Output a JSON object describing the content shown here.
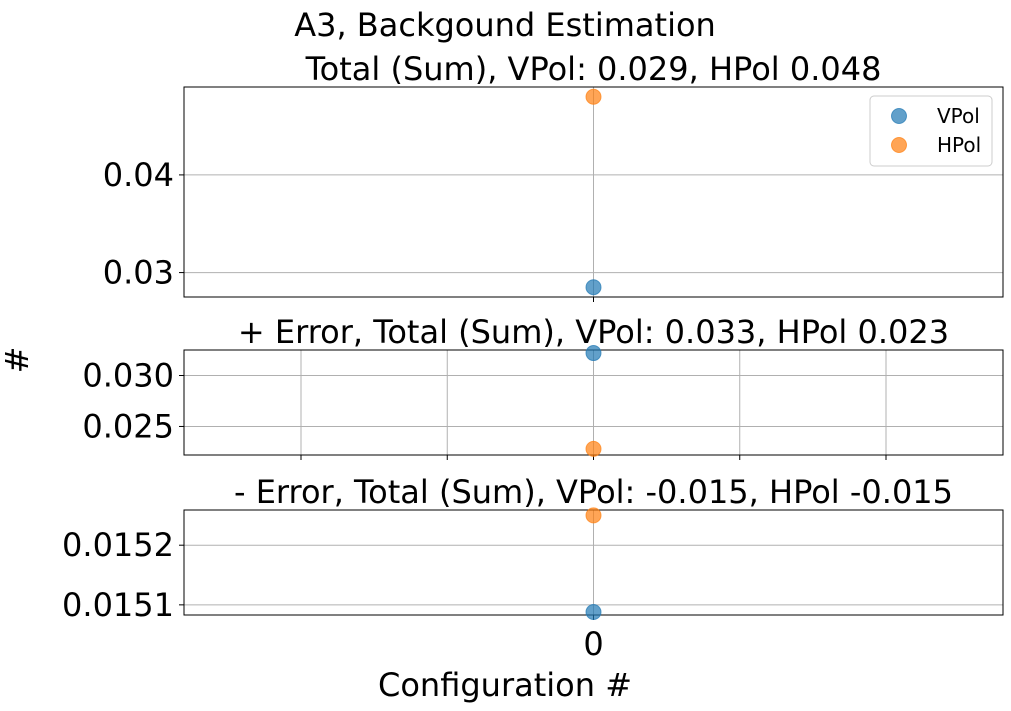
{
  "figure": {
    "suptitle": "A3, Backgound Estimation",
    "ylabel": "#",
    "xlabel": "Configuration #"
  },
  "colors": {
    "VPol": "#1f77b4",
    "HPol": "#ff7f0e",
    "grid": "#b0b0b0"
  },
  "legend": {
    "placement": "top-right",
    "entries": [
      "VPol",
      "HPol"
    ]
  },
  "chart_data": [
    {
      "type": "scatter",
      "title": "Total (Sum), VPol: 0.029, HPol 0.048",
      "xlim": [
        -1.4,
        1.4
      ],
      "ylim": [
        0.0275,
        0.049
      ],
      "yticks": [
        0.03,
        0.04
      ],
      "ytick_labels": [
        "0.03",
        "0.04"
      ],
      "xticks": [
        0
      ],
      "xtick_labels": [],
      "grid": true,
      "series": [
        {
          "name": "VPol",
          "x": [
            0
          ],
          "y": [
            0.0285
          ]
        },
        {
          "name": "HPol",
          "x": [
            0
          ],
          "y": [
            0.048
          ]
        }
      ]
    },
    {
      "type": "scatter",
      "title": "+ Error, Total (Sum), VPol: 0.033, HPol 0.023",
      "xlim": [
        -1.4,
        1.4
      ],
      "ylim": [
        0.0222,
        0.0325
      ],
      "yticks": [
        0.025,
        0.03
      ],
      "ytick_labels": [
        "0.025",
        "0.030"
      ],
      "xticks": [
        -1.0,
        -0.5,
        0,
        0.5,
        1.0
      ],
      "xtick_labels": [],
      "grid": true,
      "series": [
        {
          "name": "VPol",
          "x": [
            0
          ],
          "y": [
            0.0322
          ]
        },
        {
          "name": "HPol",
          "x": [
            0
          ],
          "y": [
            0.0228
          ]
        }
      ]
    },
    {
      "type": "scatter",
      "title": "- Error, Total (Sum), VPol: -0.015, HPol -0.015",
      "xlim": [
        -1.4,
        1.4
      ],
      "ylim": [
        0.015083,
        0.015259
      ],
      "yticks": [
        0.0151,
        0.0152
      ],
      "ytick_labels": [
        "0.0151",
        "0.0152"
      ],
      "xticks": [
        0
      ],
      "xtick_labels": [
        "0"
      ],
      "grid": true,
      "series": [
        {
          "name": "VPol",
          "x": [
            0
          ],
          "y": [
            0.015088
          ]
        },
        {
          "name": "HPol",
          "x": [
            0
          ],
          "y": [
            0.01525
          ]
        }
      ]
    }
  ]
}
